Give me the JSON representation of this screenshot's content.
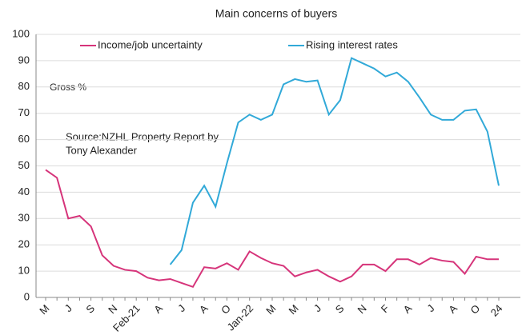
{
  "chart_data": {
    "type": "line",
    "title": "Main concerns of buyers",
    "annotations": [
      "Gross %"
    ],
    "source": [
      "Source:NZHL Property Report by",
      "Tony Alexander"
    ],
    "categories": [
      "M",
      null,
      "J",
      null,
      "S",
      null,
      "N",
      null,
      "Feb-21",
      null,
      "A",
      null,
      "J",
      null,
      "A",
      null,
      "O",
      null,
      "Jan-22",
      null,
      "M",
      null,
      "M",
      null,
      "J",
      null,
      "S",
      null,
      "N",
      null,
      "F",
      null,
      "A",
      null,
      "J",
      null,
      "A",
      null,
      "O",
      null,
      "24"
    ],
    "series": [
      {
        "name": "Income/job uncertainty",
        "color": "#d6347a",
        "values": [
          48.5,
          45.5,
          30,
          31,
          27,
          16,
          12,
          10.5,
          10,
          7.5,
          6.5,
          7,
          5.5,
          4,
          11.5,
          11,
          13,
          10.5,
          17.5,
          15,
          13,
          12,
          8,
          9.5,
          10.5,
          8,
          6,
          8,
          12.5,
          12.5,
          10,
          14.5,
          14.5,
          12.5,
          15,
          14,
          13.5,
          9,
          15.5,
          14.5,
          14.5
        ]
      },
      {
        "name": "Rising interest rates",
        "color": "#31a9d8",
        "values": [
          null,
          null,
          null,
          null,
          null,
          null,
          null,
          null,
          null,
          null,
          null,
          12.5,
          18,
          36,
          42.5,
          34.5,
          51,
          66.5,
          69.5,
          67.5,
          69.5,
          81,
          83,
          82,
          82.5,
          69.5,
          75,
          91,
          89,
          87,
          84,
          85.5,
          82,
          76,
          69.5,
          67.5,
          67.5,
          71,
          71.5,
          63,
          42.5
        ]
      }
    ],
    "ylim": [
      0,
      100
    ],
    "yticks": [
      0,
      10,
      20,
      30,
      40,
      50,
      60,
      70,
      80,
      90,
      100
    ],
    "grid": true
  }
}
